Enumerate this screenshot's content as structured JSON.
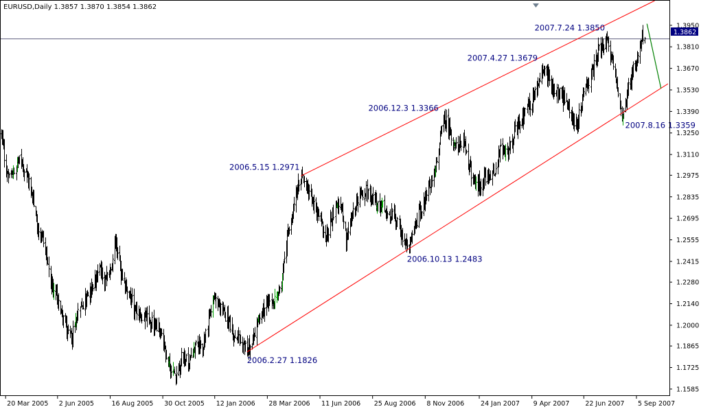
{
  "header": {
    "symbol_line": "EURUSD,Daily  1.3857 1.3870 1.3854 1.3862"
  },
  "colors": {
    "background": "#ffffff",
    "candles": "#000000",
    "bull_candles": "#00a000",
    "channel_lines": "#ff0000",
    "projection_line": "#008000",
    "label_text": "#000080",
    "price_tag_bg": "#000080",
    "current_price_line": "#606080"
  },
  "chart_data": {
    "type": "line",
    "subtype": "candlestick-ohlc",
    "title": "EURUSD,Daily  1.3857 1.3870 1.3854 1.3862",
    "ohlc_last": {
      "open": 1.3857,
      "high": 1.387,
      "low": 1.3854,
      "close": 1.3862
    },
    "current_price": "1.3862",
    "xlabel": "",
    "ylabel": "",
    "ylim": [
      1.154,
      1.411
    ],
    "grid": false,
    "x_tick_labels": [
      "20 Mar 2005",
      "2 Jun 2005",
      "16 Aug 2005",
      "30 Oct 2005",
      "12 Jan 2006",
      "28 Mar 2006",
      "11 Jun 2006",
      "25 Aug 2006",
      "8 Nov 2006",
      "24 Jan 2007",
      "9 Apr 2007",
      "22 Jun 2007",
      "5 Sep 2007"
    ],
    "x_tick_dates": [
      "2005-03-20",
      "2005-06-02",
      "2005-08-16",
      "2005-10-30",
      "2006-01-12",
      "2006-03-28",
      "2006-06-11",
      "2006-08-25",
      "2006-11-08",
      "2007-01-24",
      "2007-04-09",
      "2007-06-22",
      "2007-09-05"
    ],
    "y_tick_labels": [
      "1.3950",
      "1.3810",
      "1.3670",
      "1.3530",
      "1.3390",
      "1.3250",
      "1.3110",
      "1.2975",
      "1.2835",
      "1.2695",
      "1.2555",
      "1.2415",
      "1.2280",
      "1.2140",
      "1.2000",
      "1.1865",
      "1.1725",
      "1.1585"
    ],
    "price_path": [
      {
        "date": "2005-03-12",
        "price": 1.332
      },
      {
        "date": "2005-03-20",
        "price": 1.302
      },
      {
        "date": "2005-03-28",
        "price": 1.296
      },
      {
        "date": "2005-04-07",
        "price": 1.308
      },
      {
        "date": "2005-04-16",
        "price": 1.299
      },
      {
        "date": "2005-04-24",
        "price": 1.292
      },
      {
        "date": "2005-05-04",
        "price": 1.266
      },
      {
        "date": "2005-05-14",
        "price": 1.256
      },
      {
        "date": "2005-05-24",
        "price": 1.225
      },
      {
        "date": "2005-06-02",
        "price": 1.216
      },
      {
        "date": "2005-06-12",
        "price": 1.202
      },
      {
        "date": "2005-06-22",
        "price": 1.192
      },
      {
        "date": "2005-07-02",
        "price": 1.208
      },
      {
        "date": "2005-07-12",
        "price": 1.218
      },
      {
        "date": "2005-07-22",
        "price": 1.224
      },
      {
        "date": "2005-08-01",
        "price": 1.238
      },
      {
        "date": "2005-08-08",
        "price": 1.226
      },
      {
        "date": "2005-08-16",
        "price": 1.238
      },
      {
        "date": "2005-08-24",
        "price": 1.255
      },
      {
        "date": "2005-09-02",
        "price": 1.228
      },
      {
        "date": "2005-09-12",
        "price": 1.22
      },
      {
        "date": "2005-09-22",
        "price": 1.208
      },
      {
        "date": "2005-10-02",
        "price": 1.206
      },
      {
        "date": "2005-10-12",
        "price": 1.202
      },
      {
        "date": "2005-10-22",
        "price": 1.2
      },
      {
        "date": "2005-10-30",
        "price": 1.192
      },
      {
        "date": "2005-11-08",
        "price": 1.174
      },
      {
        "date": "2005-11-17",
        "price": 1.168
      },
      {
        "date": "2005-11-26",
        "price": 1.18
      },
      {
        "date": "2005-12-06",
        "price": 1.176
      },
      {
        "date": "2005-12-16",
        "price": 1.188
      },
      {
        "date": "2005-12-26",
        "price": 1.184
      },
      {
        "date": "2006-01-05",
        "price": 1.21
      },
      {
        "date": "2006-01-12",
        "price": 1.218
      },
      {
        "date": "2006-01-20",
        "price": 1.21
      },
      {
        "date": "2006-01-30",
        "price": 1.205
      },
      {
        "date": "2006-02-08",
        "price": 1.195
      },
      {
        "date": "2006-02-18",
        "price": 1.188
      },
      {
        "date": "2006-02-27",
        "price": 1.1826
      },
      {
        "date": "2006-03-08",
        "price": 1.193
      },
      {
        "date": "2006-03-18",
        "price": 1.208
      },
      {
        "date": "2006-03-28",
        "price": 1.214
      },
      {
        "date": "2006-04-06",
        "price": 1.215
      },
      {
        "date": "2006-04-16",
        "price": 1.226
      },
      {
        "date": "2006-04-26",
        "price": 1.26
      },
      {
        "date": "2006-05-05",
        "price": 1.28
      },
      {
        "date": "2006-05-15",
        "price": 1.2971
      },
      {
        "date": "2006-05-25",
        "price": 1.284
      },
      {
        "date": "2006-06-03",
        "price": 1.278
      },
      {
        "date": "2006-06-11",
        "price": 1.269
      },
      {
        "date": "2006-06-20",
        "price": 1.256
      },
      {
        "date": "2006-06-30",
        "price": 1.273
      },
      {
        "date": "2006-07-09",
        "price": 1.28
      },
      {
        "date": "2006-07-18",
        "price": 1.256
      },
      {
        "date": "2006-07-27",
        "price": 1.272
      },
      {
        "date": "2006-08-06",
        "price": 1.284
      },
      {
        "date": "2006-08-16",
        "price": 1.288
      },
      {
        "date": "2006-08-25",
        "price": 1.282
      },
      {
        "date": "2006-09-04",
        "price": 1.28
      },
      {
        "date": "2006-09-14",
        "price": 1.272
      },
      {
        "date": "2006-09-24",
        "price": 1.272
      },
      {
        "date": "2006-10-04",
        "price": 1.26
      },
      {
        "date": "2006-10-13",
        "price": 1.2483
      },
      {
        "date": "2006-10-22",
        "price": 1.26
      },
      {
        "date": "2006-11-01",
        "price": 1.275
      },
      {
        "date": "2006-11-08",
        "price": 1.283
      },
      {
        "date": "2006-11-15",
        "price": 1.29
      },
      {
        "date": "2006-11-25",
        "price": 1.31
      },
      {
        "date": "2006-12-03",
        "price": 1.3366
      },
      {
        "date": "2006-12-12",
        "price": 1.328
      },
      {
        "date": "2006-12-22",
        "price": 1.315
      },
      {
        "date": "2007-01-01",
        "price": 1.319
      },
      {
        "date": "2007-01-10",
        "price": 1.302
      },
      {
        "date": "2007-01-20",
        "price": 1.29
      },
      {
        "date": "2007-01-24",
        "price": 1.292
      },
      {
        "date": "2007-02-03",
        "price": 1.296
      },
      {
        "date": "2007-02-13",
        "price": 1.299
      },
      {
        "date": "2007-02-23",
        "price": 1.314
      },
      {
        "date": "2007-03-05",
        "price": 1.31
      },
      {
        "date": "2007-03-15",
        "price": 1.325
      },
      {
        "date": "2007-03-25",
        "price": 1.333
      },
      {
        "date": "2007-04-09",
        "price": 1.345
      },
      {
        "date": "2007-04-19",
        "price": 1.358
      },
      {
        "date": "2007-04-27",
        "price": 1.3679
      },
      {
        "date": "2007-05-07",
        "price": 1.356
      },
      {
        "date": "2007-05-17",
        "price": 1.351
      },
      {
        "date": "2007-05-27",
        "price": 1.345
      },
      {
        "date": "2007-06-06",
        "price": 1.335
      },
      {
        "date": "2007-06-12",
        "price": 1.33
      },
      {
        "date": "2007-06-22",
        "price": 1.352
      },
      {
        "date": "2007-07-02",
        "price": 1.362
      },
      {
        "date": "2007-07-12",
        "price": 1.378
      },
      {
        "date": "2007-07-24",
        "price": 1.385
      },
      {
        "date": "2007-08-02",
        "price": 1.37
      },
      {
        "date": "2007-08-09",
        "price": 1.356
      },
      {
        "date": "2007-08-16",
        "price": 1.3359
      },
      {
        "date": "2007-08-23",
        "price": 1.352
      },
      {
        "date": "2007-08-30",
        "price": 1.365
      },
      {
        "date": "2007-09-05",
        "price": 1.372
      },
      {
        "date": "2007-09-12",
        "price": 1.388
      },
      {
        "date": "2007-09-17",
        "price": 1.3862
      }
    ],
    "channel_upper": [
      {
        "date": "2006-05-15",
        "price": 1.2971
      },
      {
        "date": "2007-10-01",
        "price": 1.411
      }
    ],
    "channel_lower": [
      {
        "date": "2006-02-27",
        "price": 1.1826
      },
      {
        "date": "2007-10-20",
        "price": 1.357
      }
    ],
    "projection": [
      {
        "date": "2007-09-20",
        "price": 1.396
      },
      {
        "date": "2007-10-10",
        "price": 1.354
      }
    ],
    "annotations": [
      {
        "text": "2006.2.27 1.1826",
        "date": "2006-02-27",
        "price": 1.1826
      },
      {
        "text": "2006.5.15 1.2971",
        "date": "2006-05-15",
        "price": 1.2971
      },
      {
        "text": "2006.10.13 1.2483",
        "date": "2006-10-13",
        "price": 1.2483
      },
      {
        "text": "2006.12.3 1.3366",
        "date": "2006-12-03",
        "price": 1.3366
      },
      {
        "text": "2007.4.27 1.3679",
        "date": "2007-04-27",
        "price": 1.3679
      },
      {
        "text": "2007.7.24 1.3850",
        "date": "2007-07-24",
        "price": 1.385
      },
      {
        "text": "2007.8.16 1.3359",
        "date": "2007-08-16",
        "price": 1.3359
      }
    ]
  }
}
